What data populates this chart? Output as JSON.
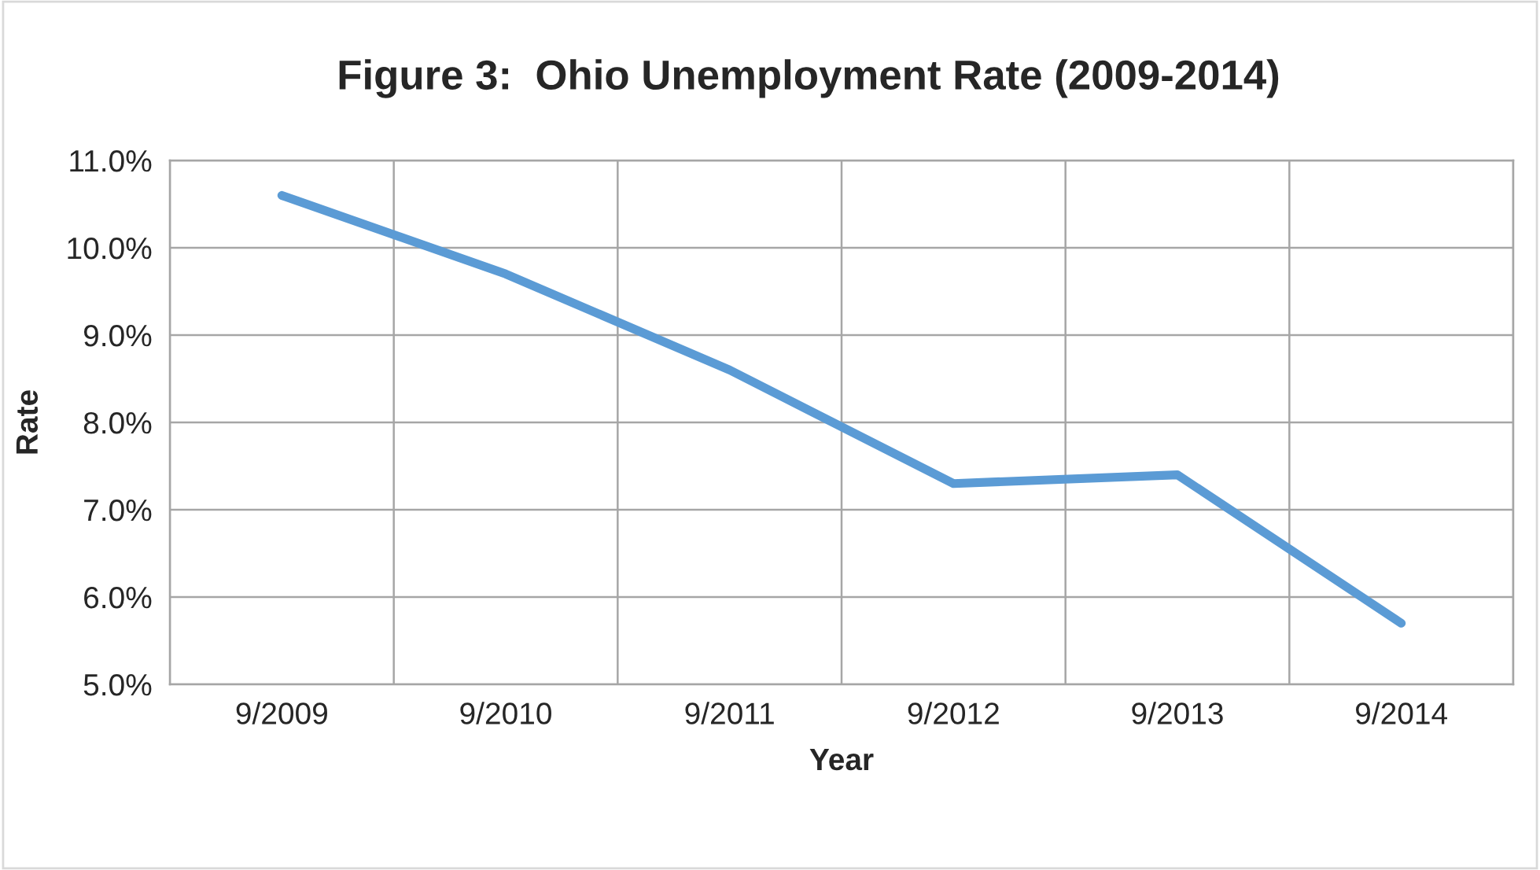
{
  "chart_data": {
    "type": "line",
    "title": "Figure 3:  Ohio Unemployment Rate (2009-2014)",
    "xlabel": "Year",
    "ylabel": "Rate",
    "categories": [
      "9/2009",
      "9/2010",
      "9/2011",
      "9/2012",
      "9/2013",
      "9/2014"
    ],
    "series": [
      {
        "color": "#5b9bd5",
        "values": [
          10.6,
          9.7,
          8.6,
          7.3,
          7.4,
          5.7
        ]
      }
    ],
    "ylim": [
      5,
      11
    ],
    "yticks": [
      {
        "value": 5,
        "label": "5.0%"
      },
      {
        "value": 6,
        "label": "6.0%"
      },
      {
        "value": 7,
        "label": "7.0%"
      },
      {
        "value": 8,
        "label": "8.0%"
      },
      {
        "value": 9,
        "label": "9.0%"
      },
      {
        "value": 10,
        "label": "10.0%"
      },
      {
        "value": 11,
        "label": "11.0%"
      }
    ],
    "grid": true,
    "marker": "none",
    "line_style": "solid"
  }
}
